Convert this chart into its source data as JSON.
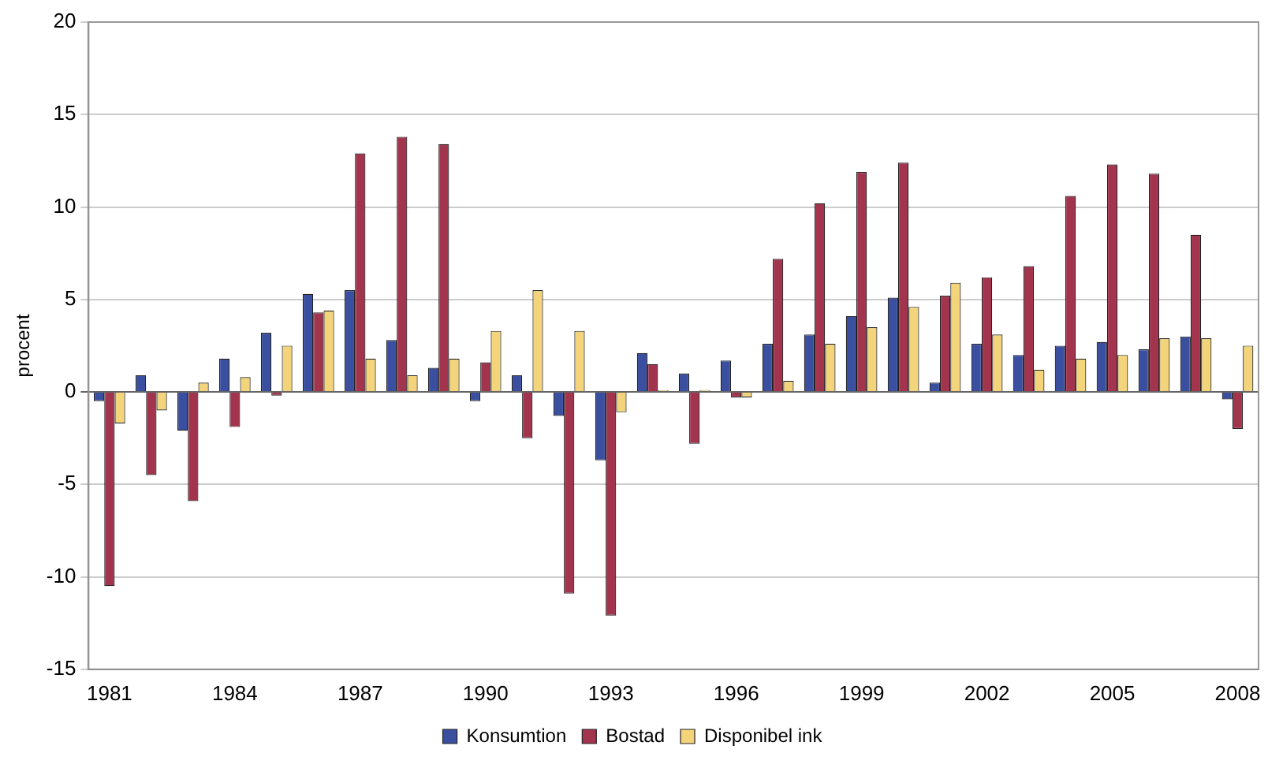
{
  "chart_data": {
    "type": "bar",
    "ylabel": "procent",
    "categories": [
      "1981",
      null,
      null,
      "1984",
      null,
      null,
      "1987",
      null,
      null,
      "1990",
      null,
      null,
      "1993",
      null,
      null,
      "1996",
      null,
      null,
      "1999",
      null,
      null,
      "2002",
      null,
      null,
      "2005",
      null,
      null,
      "2008"
    ],
    "series": [
      {
        "name": "Konsumtion",
        "color": "#3a4fa0",
        "values": [
          -0.5,
          0.9,
          -2.1,
          1.8,
          3.2,
          5.3,
          5.5,
          2.8,
          1.3,
          -0.5,
          0.9,
          -1.3,
          -3.7,
          2.1,
          1.0,
          1.7,
          2.6,
          3.1,
          4.1,
          5.1,
          0.5,
          2.6,
          2.0,
          2.5,
          2.7,
          2.3,
          3.0,
          -0.4
        ]
      },
      {
        "name": "Bostad",
        "color": "#a3344e",
        "values": [
          -10.5,
          -4.5,
          -5.9,
          -1.9,
          -0.2,
          4.3,
          12.9,
          13.8,
          13.4,
          1.6,
          -2.5,
          -10.9,
          -12.1,
          1.5,
          -2.8,
          -0.3,
          7.2,
          10.2,
          11.9,
          12.4,
          5.2,
          6.2,
          6.8,
          10.6,
          12.3,
          11.8,
          8.5,
          -2.0
        ]
      },
      {
        "name": "Disponibel ink",
        "color": "#f3d47a",
        "values": [
          -1.7,
          -1.0,
          0.5,
          0.8,
          2.5,
          4.4,
          1.8,
          0.9,
          1.8,
          3.3,
          5.5,
          3.3,
          -1.1,
          0.1,
          0.1,
          -0.3,
          0.6,
          2.6,
          3.5,
          4.6,
          5.9,
          3.1,
          1.2,
          1.8,
          2.0,
          2.9,
          2.9,
          2.5
        ]
      }
    ],
    "ylim": [
      -15,
      20
    ],
    "yticks": [
      -15,
      -10,
      -5,
      0,
      5,
      10,
      15,
      20
    ],
    "grid": "y",
    "legend": "bottom"
  }
}
